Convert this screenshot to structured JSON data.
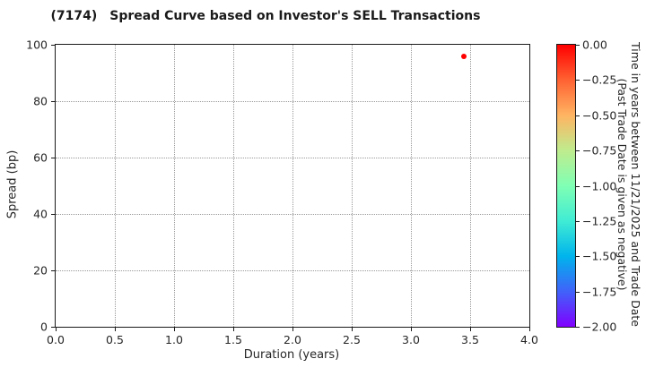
{
  "title": {
    "code": "(7174)",
    "text": "Spread Curve based on Investor's SELL Transactions"
  },
  "chart_data": {
    "type": "scatter",
    "title": "(7174)  Spread Curve based on Investor's SELL Transactions",
    "xlabel": "Duration (years)",
    "ylabel": "Spread (bp)",
    "xlim": [
      0.0,
      4.0
    ],
    "ylim": [
      0,
      100
    ],
    "x_ticks": [
      "0.0",
      "0.5",
      "1.0",
      "1.5",
      "2.0",
      "2.5",
      "3.0",
      "3.5",
      "4.0"
    ],
    "y_ticks": [
      "0",
      "20",
      "40",
      "60",
      "80",
      "100"
    ],
    "grid": "dotted",
    "legend": "none",
    "points": [
      {
        "x": 3.45,
        "y": 96,
        "color_value": 0.0,
        "color": "#ff0000"
      }
    ],
    "colorbar": {
      "label_line1": "Time in years between 11/21/2025 and Trade Date",
      "label_line2": "(Past Trade Date is given as negative)",
      "ticks": [
        "0.00",
        "−0.25",
        "−0.50",
        "−0.75",
        "−1.00",
        "−1.25",
        "−1.50",
        "−1.75",
        "−2.00"
      ],
      "value_range_top_to_bottom": [
        0.0,
        -2.0
      ],
      "colormap": "rainbow",
      "gradient_top_to_bottom": [
        "#ff0000",
        "#ff6232",
        "#ffb462",
        "#bfec8e",
        "#80ffb4",
        "#40ecd4",
        "#00b4ec",
        "#4062fa",
        "#8000ff"
      ]
    }
  }
}
